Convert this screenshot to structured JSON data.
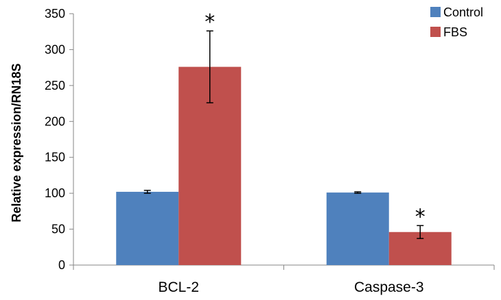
{
  "chart_data": {
    "type": "bar",
    "title": "",
    "xlabel": "",
    "ylabel": "Relative expression/RN18S",
    "ylim": [
      0,
      350
    ],
    "yticks": [
      0,
      50,
      100,
      150,
      200,
      250,
      300,
      350
    ],
    "categories": [
      "BCL-2",
      "Caspase-3"
    ],
    "series": [
      {
        "name": "Control",
        "color": "#4F81BD",
        "values": [
          102,
          101
        ],
        "errors": [
          2,
          1
        ],
        "annotations": [
          "",
          ""
        ]
      },
      {
        "name": "FBS",
        "color": "#C0504D",
        "values": [
          276,
          46
        ],
        "errors": [
          50,
          9
        ],
        "annotations": [
          "*",
          "*"
        ]
      }
    ],
    "legend": {
      "position": "top-right"
    },
    "grid": false
  }
}
